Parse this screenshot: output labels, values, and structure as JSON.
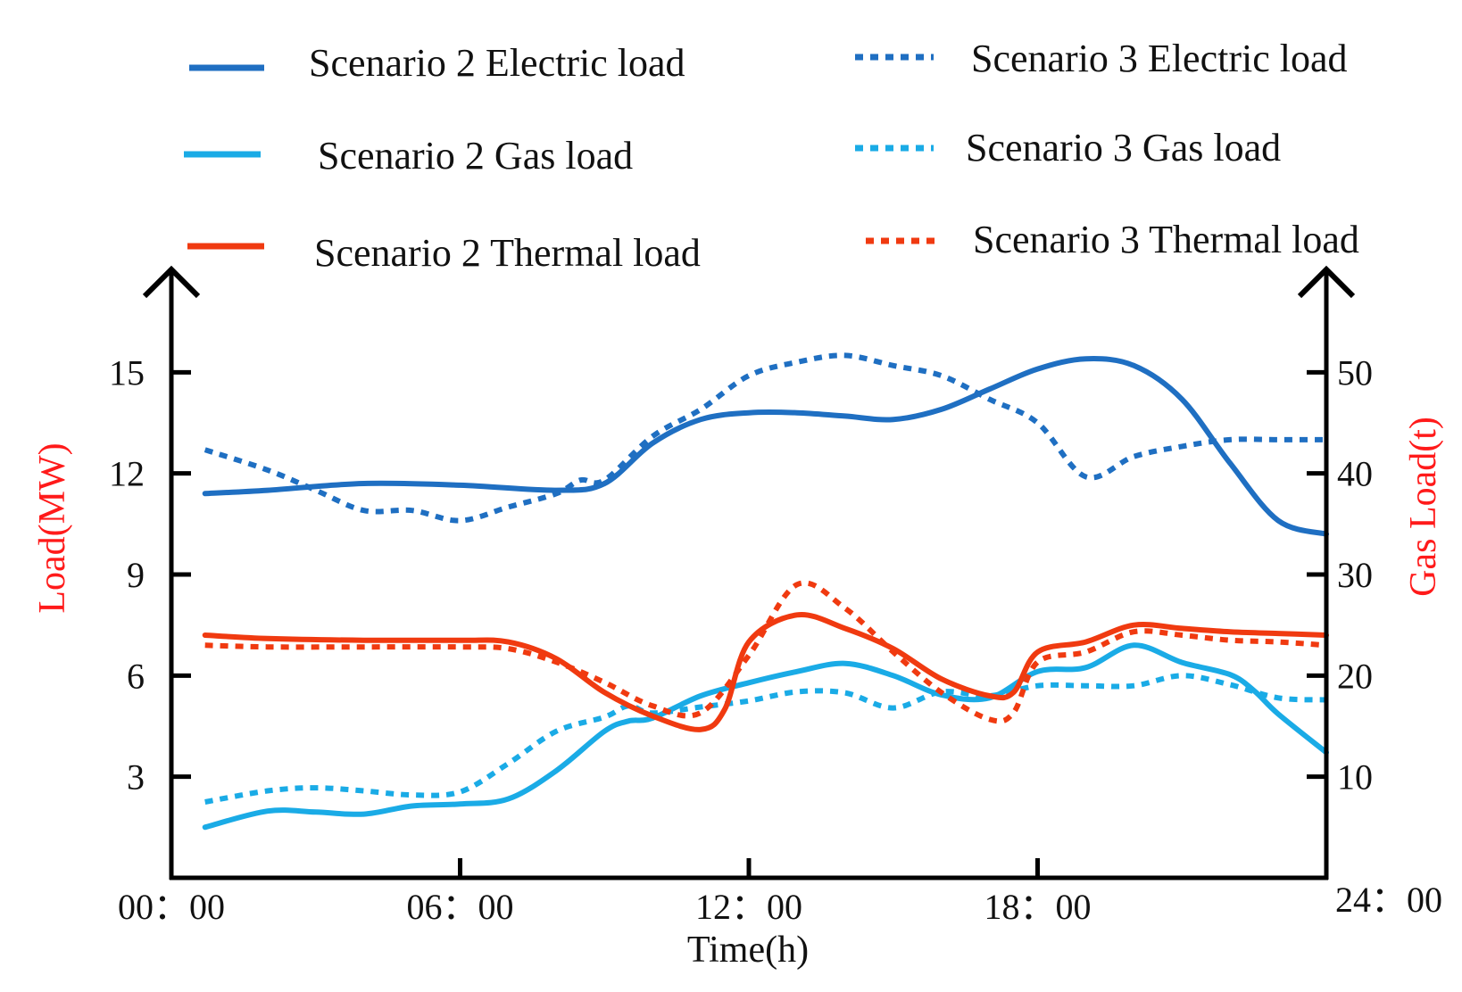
{
  "chart_data": {
    "type": "line",
    "xlabel": "Time(h)",
    "ylabel_left": "Load(MW)",
    "ylabel_right": "Gas Load(t)",
    "ylabel_color": "#ff1a1a",
    "x_range": [
      0,
      24
    ],
    "y_left_range": [
      0,
      18
    ],
    "y_right_range": [
      0,
      60
    ],
    "x_ticks": [
      {
        "value": 0,
        "label": "00：00"
      },
      {
        "value": 6,
        "label": "06：00"
      },
      {
        "value": 12,
        "label": "12：00"
      },
      {
        "value": 18,
        "label": "18：00"
      },
      {
        "value": 24,
        "label": "24：00"
      }
    ],
    "y_left_ticks": [
      {
        "value": 3,
        "label": "3"
      },
      {
        "value": 6,
        "label": "6"
      },
      {
        "value": 9,
        "label": "9"
      },
      {
        "value": 12,
        "label": "12"
      },
      {
        "value": 15,
        "label": "15"
      }
    ],
    "y_right_ticks": [
      {
        "value": 10,
        "label": "10"
      },
      {
        "value": 20,
        "label": "20"
      },
      {
        "value": 30,
        "label": "30"
      },
      {
        "value": 40,
        "label": "40"
      },
      {
        "value": 50,
        "label": "50"
      }
    ],
    "series": [
      {
        "name": "Scenario  2 Electric load",
        "color": "#1f6fc2",
        "dash": "solid",
        "axis": "left",
        "x": [
          0.7,
          2,
          4,
          6,
          8,
          9,
          10,
          11,
          12,
          13,
          14,
          15,
          16,
          17,
          18,
          19,
          20,
          21,
          22,
          23,
          24
        ],
        "y": [
          11.4,
          11.5,
          11.7,
          11.65,
          11.5,
          11.7,
          12.9,
          13.6,
          13.8,
          13.8,
          13.7,
          13.6,
          13.9,
          14.5,
          15.1,
          15.4,
          15.2,
          14.2,
          12.3,
          10.6,
          10.2
        ]
      },
      {
        "name": "Scenario 3 Electric load",
        "color": "#1f6fc2",
        "dash": "dotted",
        "axis": "left",
        "x": [
          0.7,
          2,
          3,
          4,
          5,
          6,
          7,
          8,
          8.5,
          9,
          10,
          11,
          12,
          13,
          14,
          15,
          16,
          17,
          18,
          19,
          20,
          21,
          22,
          23,
          24
        ],
        "y": [
          12.7,
          12.1,
          11.5,
          10.9,
          10.9,
          10.6,
          11.0,
          11.4,
          11.8,
          11.8,
          13.1,
          13.9,
          14.9,
          15.3,
          15.5,
          15.2,
          14.9,
          14.2,
          13.5,
          11.9,
          12.5,
          12.8,
          13.0,
          13.0,
          13.0
        ]
      },
      {
        "name": "Scenario 2 Gas load",
        "color": "#1aabe6",
        "dash": "solid",
        "axis": "right",
        "x": [
          0.7,
          2,
          3,
          4,
          5,
          6,
          7,
          8,
          9,
          9.5,
          10,
          11,
          12,
          13,
          14,
          15,
          16,
          17,
          18,
          19,
          20,
          21,
          22,
          22.5,
          23,
          24
        ],
        "y": [
          5.0,
          6.6,
          6.5,
          6.3,
          7.1,
          7.3,
          7.8,
          10.6,
          14.5,
          15.5,
          15.8,
          18.0,
          19.3,
          20.4,
          21.2,
          20.0,
          18.1,
          17.8,
          20.4,
          20.8,
          23.0,
          21.3,
          20.1,
          18.5,
          16.2,
          12.4
        ]
      },
      {
        "name": "Scenario 3 Gas load",
        "color": "#1aabe6",
        "dash": "dotted",
        "axis": "right",
        "x": [
          0.7,
          2,
          3,
          4,
          5,
          6,
          7,
          8,
          9,
          9.5,
          10,
          11,
          12,
          13,
          14,
          15,
          16,
          17,
          18,
          19,
          20,
          21,
          22,
          23,
          24
        ],
        "y": [
          7.5,
          8.6,
          8.9,
          8.6,
          8.2,
          8.5,
          11.3,
          14.5,
          15.9,
          17.0,
          16.3,
          16.9,
          17.5,
          18.4,
          18.3,
          16.8,
          18.4,
          18.0,
          19.0,
          19.0,
          19.0,
          20.0,
          19.1,
          17.8,
          17.6
        ]
      },
      {
        "name": "Scenario 2 Thermal load",
        "color": "#f03a10",
        "dash": "solid",
        "axis": "left",
        "x": [
          0.7,
          2,
          4,
          6,
          7,
          8,
          9,
          10,
          11,
          11.5,
          12,
          13,
          14,
          15,
          16,
          17,
          17.5,
          18,
          19,
          20,
          21,
          22,
          23,
          24
        ],
        "y": [
          7.2,
          7.1,
          7.05,
          7.05,
          7.0,
          6.5,
          5.5,
          4.8,
          4.4,
          5.0,
          7.0,
          7.8,
          7.4,
          6.8,
          5.9,
          5.4,
          5.5,
          6.7,
          7.0,
          7.5,
          7.4,
          7.3,
          7.25,
          7.2
        ]
      },
      {
        "name": "Scenario 3 Thermal load",
        "color": "#f03a10",
        "dash": "dotted",
        "axis": "left",
        "x": [
          0.7,
          2,
          4,
          6,
          7,
          8,
          9,
          10,
          11,
          12,
          13,
          14,
          15,
          16,
          17,
          17.5,
          18,
          19,
          20,
          21,
          22,
          23,
          24
        ],
        "y": [
          6.9,
          6.85,
          6.85,
          6.85,
          6.8,
          6.4,
          5.8,
          5.1,
          4.9,
          6.6,
          8.7,
          8.0,
          6.7,
          5.5,
          4.7,
          4.9,
          6.4,
          6.7,
          7.3,
          7.2,
          7.05,
          7.0,
          6.9
        ]
      }
    ],
    "legend": [
      {
        "label": "Scenario  2 Electric load",
        "color": "#1f6fc2",
        "dash": "solid"
      },
      {
        "label": "Scenario 3 Electric load",
        "color": "#1f6fc2",
        "dash": "dotted"
      },
      {
        "label": "Scenario 2 Gas load",
        "color": "#1aabe6",
        "dash": "solid"
      },
      {
        "label": "Scenario 3 Gas load",
        "color": "#1aabe6",
        "dash": "dotted"
      },
      {
        "label": "Scenario 2 Thermal load",
        "color": "#f03a10",
        "dash": "solid"
      },
      {
        "label": "Scenario 3 Thermal load",
        "color": "#f03a10",
        "dash": "dotted"
      }
    ],
    "legend_position": "top"
  }
}
